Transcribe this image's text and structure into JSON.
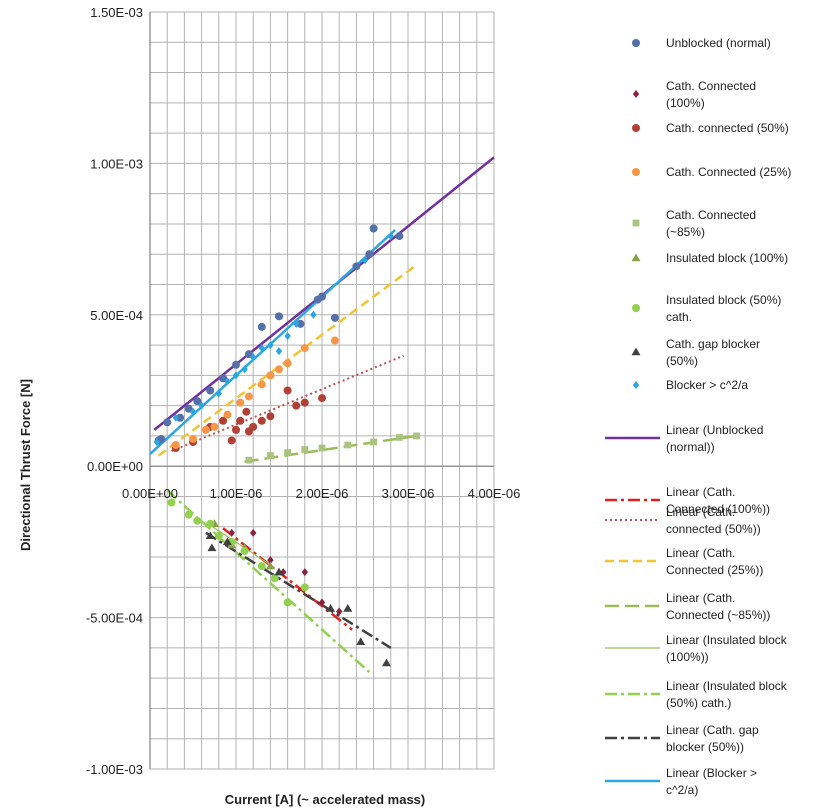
{
  "chart_data": {
    "type": "scatter",
    "xlabel": "Current [A] (~ accelerated mass)",
    "ylabel": "Directional Thrust Force [N]",
    "xlim": [
      0,
      4e-06
    ],
    "ylim": [
      -0.001,
      0.0015
    ],
    "x_ticks": [
      0,
      1e-06,
      2e-06,
      3e-06,
      4e-06
    ],
    "x_tick_labels": [
      "0.00E+00",
      "1.00E-06",
      "2.00E-06",
      "3.00E-06",
      "4.00E-06"
    ],
    "y_ticks": [
      -0.001,
      -0.0005,
      0,
      0.0005,
      0.001,
      0.0015
    ],
    "y_tick_labels": [
      "-1.00E-03",
      "-5.00E-04",
      "0.00E+00",
      "5.00E-04",
      "1.00E-03",
      "1.50E-03"
    ],
    "grid": true,
    "legend_position": "right",
    "series": [
      {
        "name": "Unblocked (normal)",
        "marker": "circle",
        "color": "#5470a8",
        "points": [
          [
            1e-07,
            8.5e-05
          ],
          [
            1.3e-07,
            9e-05
          ],
          [
            2e-07,
            0.000145
          ],
          [
            3.5e-07,
            0.00016
          ],
          [
            4.5e-07,
            0.00019
          ],
          [
            5.5e-07,
            0.000215
          ],
          [
            7e-07,
            0.00025
          ],
          [
            8.5e-07,
            0.00029
          ],
          [
            1e-06,
            0.000335
          ],
          [
            1.15e-06,
            0.00037
          ],
          [
            1.3e-06,
            0.00046
          ],
          [
            1.5e-06,
            0.000495
          ],
          [
            1.75e-06,
            0.00047
          ],
          [
            1.95e-06,
            0.00055
          ],
          [
            2e-06,
            0.00056
          ],
          [
            2.15e-06,
            0.00049
          ],
          [
            2.4e-06,
            0.00066
          ],
          [
            2.55e-06,
            0.0007
          ],
          [
            2.6e-06,
            0.000785
          ],
          [
            2.9e-06,
            0.00076
          ]
        ]
      },
      {
        "name": "Cath. Connected (100%)",
        "marker": "diamond",
        "color": "#8b2340",
        "points": [
          [
            9.5e-07,
            -0.00022
          ],
          [
            1.2e-06,
            -0.00022
          ],
          [
            1.4e-06,
            -0.00031
          ],
          [
            1.55e-06,
            -0.00035
          ],
          [
            1.8e-06,
            -0.00035
          ],
          [
            2e-06,
            -0.00045
          ],
          [
            2.2e-06,
            -0.00048
          ]
        ]
      },
      {
        "name": "Cath. connected (50%)",
        "marker": "circle",
        "color": "#b14036",
        "points": [
          [
            3e-07,
            6e-05
          ],
          [
            5e-07,
            8e-05
          ],
          [
            7e-07,
            0.00013
          ],
          [
            8.5e-07,
            0.00015
          ],
          [
            9.5e-07,
            8.5e-05
          ],
          [
            1e-06,
            0.00012
          ],
          [
            1.05e-06,
            0.00015
          ],
          [
            1.12e-06,
            0.00018
          ],
          [
            1.15e-06,
            0.000115
          ],
          [
            1.2e-06,
            0.00013
          ],
          [
            1.3e-06,
            0.00015
          ],
          [
            1.4e-06,
            0.000165
          ],
          [
            1.6e-06,
            0.00025
          ],
          [
            1.7e-06,
            0.0002
          ],
          [
            1.8e-06,
            0.00021
          ],
          [
            2e-06,
            0.000225
          ]
        ]
      },
      {
        "name": "Cath. Connected (25%)",
        "marker": "circle",
        "color": "#f79646",
        "points": [
          [
            3e-07,
            7e-05
          ],
          [
            5e-07,
            9e-05
          ],
          [
            6.5e-07,
            0.00012
          ],
          [
            7.5e-07,
            0.00013
          ],
          [
            9e-07,
            0.00017
          ],
          [
            1.05e-06,
            0.00021
          ],
          [
            1.15e-06,
            0.00023
          ],
          [
            1.3e-06,
            0.00027
          ],
          [
            1.4e-06,
            0.0003
          ],
          [
            1.5e-06,
            0.00032
          ],
          [
            1.6e-06,
            0.00034
          ],
          [
            1.8e-06,
            0.00039
          ],
          [
            2.15e-06,
            0.000415
          ]
        ]
      },
      {
        "name": "Cath. Connected (~85%)",
        "marker": "square",
        "color": "#a9c47f",
        "points": [
          [
            1.15e-06,
            2e-05
          ],
          [
            1.4e-06,
            3.5e-05
          ],
          [
            1.6e-06,
            4.5e-05
          ],
          [
            1.8e-06,
            5.5e-05
          ],
          [
            2e-06,
            6e-05
          ],
          [
            2.3e-06,
            7e-05
          ],
          [
            2.6e-06,
            8e-05
          ],
          [
            2.9e-06,
            9.5e-05
          ],
          [
            3.1e-06,
            0.0001
          ]
        ]
      },
      {
        "name": "Insulated block (100%)",
        "marker": "triangle",
        "color": "#8aa04a",
        "points": [
          [
            7.5e-07,
            -0.00019
          ],
          [
            9.5e-07,
            -0.00026
          ],
          [
            1.1e-06,
            -0.00027
          ],
          [
            1.4e-06,
            -0.00033
          ]
        ]
      },
      {
        "name": "Insulated block (50%) cath.",
        "marker": "circle",
        "color": "#92d050",
        "points": [
          [
            2.5e-07,
            -0.00012
          ],
          [
            4.5e-07,
            -0.00016
          ],
          [
            5.5e-07,
            -0.00018
          ],
          [
            7e-07,
            -0.00019
          ],
          [
            8e-07,
            -0.00023
          ],
          [
            9.5e-07,
            -0.00025
          ],
          [
            1.1e-06,
            -0.00028
          ],
          [
            1.3e-06,
            -0.00033
          ],
          [
            1.45e-06,
            -0.00037
          ],
          [
            1.6e-06,
            -0.00045
          ],
          [
            1.8e-06,
            -0.0004
          ]
        ]
      },
      {
        "name": "Cath. gap blocker (50%)",
        "marker": "triangle",
        "color": "#404040",
        "points": [
          [
            7e-07,
            -0.00023
          ],
          [
            7.2e-07,
            -0.00027
          ],
          [
            9e-07,
            -0.00025
          ],
          [
            1.5e-06,
            -0.00035
          ],
          [
            2.1e-06,
            -0.00047
          ],
          [
            2.3e-06,
            -0.00047
          ],
          [
            2.45e-06,
            -0.00058
          ],
          [
            2.75e-06,
            -0.00065
          ]
        ]
      },
      {
        "name": "Blocker > c^2/a",
        "marker": "diamond",
        "color": "#2aa7e0",
        "points": [
          [
            8e-08,
            8e-05
          ],
          [
            3e-07,
            0.00016
          ],
          [
            5e-07,
            0.00018
          ],
          [
            6e-07,
            0.0002
          ],
          [
            8e-07,
            0.00024
          ],
          [
            9e-07,
            0.00028
          ],
          [
            1e-06,
            0.0003
          ],
          [
            1.1e-06,
            0.00032
          ],
          [
            1.2e-06,
            0.00036
          ],
          [
            1.3e-06,
            0.00039
          ],
          [
            1.4e-06,
            0.0004
          ],
          [
            1.5e-06,
            0.00038
          ],
          [
            1.6e-06,
            0.00043
          ],
          [
            1.7e-06,
            0.00047
          ],
          [
            1.9e-06,
            0.0005
          ],
          [
            2.5e-06,
            0.00068
          ],
          [
            2.8e-06,
            0.00076
          ]
        ]
      }
    ],
    "trendlines": [
      {
        "name": "Linear (Unblocked (normal))",
        "color": "#7030a0",
        "dash": "solid",
        "width": 2.5,
        "x": [
          5e-08,
          4e-06
        ],
        "y": [
          0.00012,
          0.00102
        ]
      },
      {
        "name": "Linear (Cath. Connected (100%))",
        "color": "#e0201b",
        "dash": "dashdot",
        "width": 2.5,
        "x": [
          8.5e-07,
          2.35e-06
        ],
        "y": [
          -0.000205,
          -0.00054
        ]
      },
      {
        "name": "Linear (Cath. connected (50%))",
        "color": "#c0504d",
        "dash": "dotted",
        "width": 2,
        "x": [
          2.5e-07,
          2.95e-06
        ],
        "y": [
          5e-05,
          0.000365
        ]
      },
      {
        "name": "Linear (Cath. Connected (25%))",
        "color": "#f4c430",
        "dash": "dashed",
        "width": 2.5,
        "x": [
          1e-07,
          3.1e-06
        ],
        "y": [
          3.5e-05,
          0.000665
        ]
      },
      {
        "name": "Linear (Cath. Connected (~85%))",
        "color": "#9bbb59",
        "dash": "longdash",
        "width": 2.5,
        "x": [
          1.1e-06,
          3.1e-06
        ],
        "y": [
          1.5e-05,
          0.0001
        ]
      },
      {
        "name": "Linear (Insulated block (100%))",
        "color": "#9bbb59",
        "dash": "solid",
        "width": 1.2,
        "x": [
          7e-07,
          1.45e-06
        ],
        "y": [
          -0.000195,
          -0.000335
        ]
      },
      {
        "name": "Linear (Insulated block (50%) cath.)",
        "color": "#92d050",
        "dash": "dashdot",
        "width": 2.5,
        "x": [
          2e-07,
          2.55e-06
        ],
        "y": [
          -8e-05,
          -0.00068
        ]
      },
      {
        "name": "Linear (Cath. gap blocker (50%))",
        "color": "#404040",
        "dash": "dashdot",
        "width": 2.5,
        "x": [
          6.5e-07,
          2.8e-06
        ],
        "y": [
          -0.00022,
          -0.0006
        ]
      },
      {
        "name": "Linear (Blocker > c^2/a)",
        "color": "#2aa7e0",
        "dash": "solid",
        "width": 2.5,
        "x": [
          0.0,
          2.85e-06
        ],
        "y": [
          4e-05,
          0.00078
        ]
      }
    ],
    "legend_lines": [
      [
        "Unblocked (normal)"
      ],
      [
        "Cath. Connected",
        "(100%)"
      ],
      [
        "Cath. connected (50%)"
      ],
      [
        "Cath. Connected (25%)"
      ],
      [
        "Cath. Connected",
        "(~85%)"
      ],
      [
        "Insulated block (100%)"
      ],
      [
        "Insulated block (50%)",
        "cath."
      ],
      [
        "Cath. gap blocker",
        "(50%)"
      ],
      [
        "Blocker > c^2/a"
      ],
      [
        "Linear (Unblocked",
        "(normal))"
      ],
      [
        "Linear (Cath.",
        "Connected (100%))"
      ],
      [
        "Linear (Cath.",
        "connected (50%))"
      ],
      [
        "Linear (Cath.",
        "Connected (25%))"
      ],
      [
        "Linear (Cath.",
        "Connected (~85%))"
      ],
      [
        "Linear (Insulated block",
        "(100%))"
      ],
      [
        "Linear (Insulated block",
        "(50%) cath.)"
      ],
      [
        "Linear (Cath. gap",
        "blocker (50%))"
      ],
      [
        "Linear (Blocker >",
        "c^2/a)"
      ]
    ]
  }
}
